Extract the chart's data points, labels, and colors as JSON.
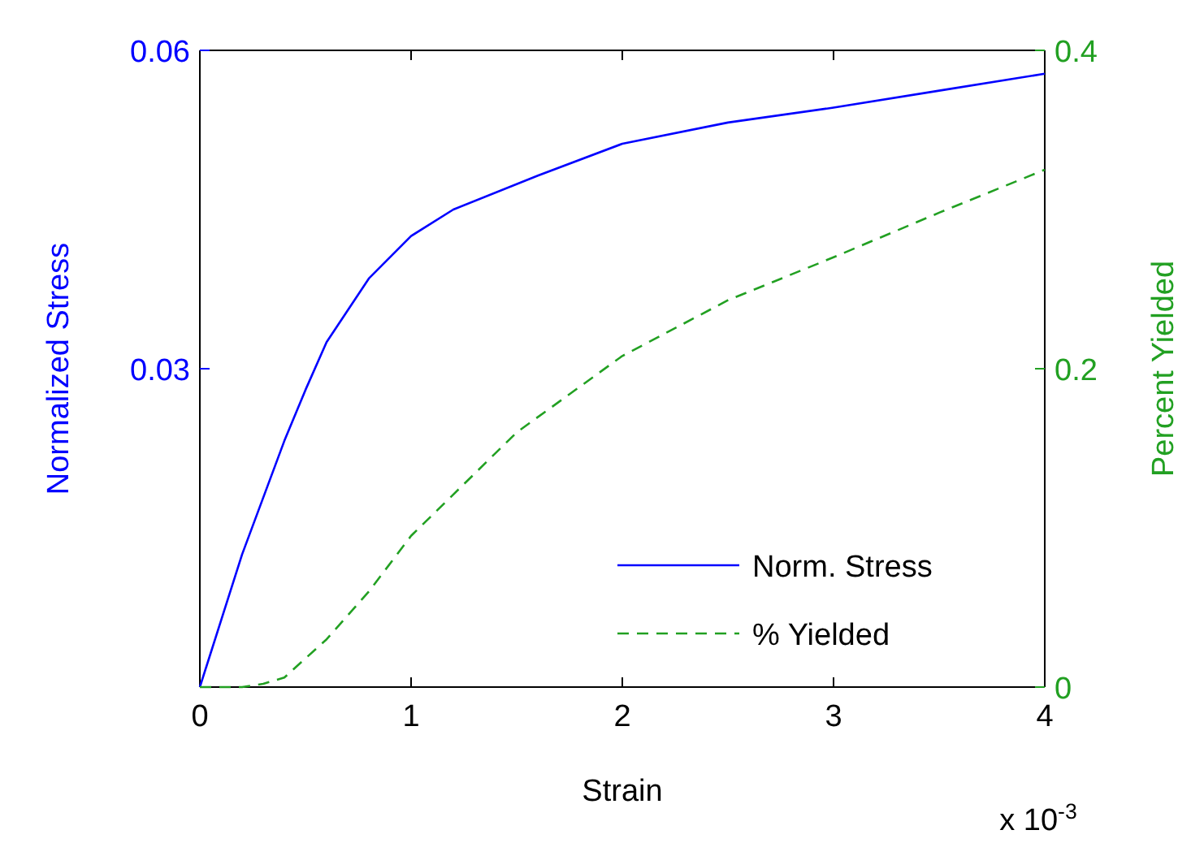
{
  "chart_data": {
    "type": "line",
    "xlabel": "Strain",
    "ylabel": "Normalized Stress",
    "y2label": "Percent Yielded",
    "annotations": [
      "x 10$^{-3}$"
    ],
    "xlim": [
      0,
      4
    ],
    "xticks": [
      0,
      1,
      2,
      3,
      4
    ],
    "ylim": [
      0,
      0.06
    ],
    "yticks": [
      0.03,
      0.06
    ],
    "y2lim": [
      0,
      0.4
    ],
    "y2ticks": [
      0,
      0.2,
      0.4
    ],
    "legend": "bottom right",
    "grid": false,
    "series": [
      {
        "name": "Norm. Stress",
        "color": "#0000ff",
        "line_style": "solid",
        "x": [
          0,
          0.2,
          0.4,
          0.5,
          0.6,
          0.8,
          1,
          1.2,
          1.6,
          2,
          2.5,
          3,
          3.5,
          4
        ],
        "values": [
          0,
          0.0125,
          0.0232,
          0.028,
          0.0325,
          0.0385,
          0.0425,
          0.045,
          0.0482,
          0.0512,
          0.0532,
          0.0546,
          0.0562,
          0.0578
        ]
      },
      {
        "name": "% Yielded",
        "color": "#22a022",
        "line_style": "dashed",
        "axis": "y2",
        "x": [
          0,
          0.2,
          0.3,
          0.4,
          0.6,
          0.8,
          1,
          1.5,
          2,
          2.5,
          3,
          3.5,
          4
        ],
        "values": [
          0,
          0,
          0.002,
          0.006,
          0.03,
          0.06,
          0.095,
          0.16,
          0.208,
          0.243,
          0.27,
          0.298,
          0.325
        ]
      }
    ]
  }
}
